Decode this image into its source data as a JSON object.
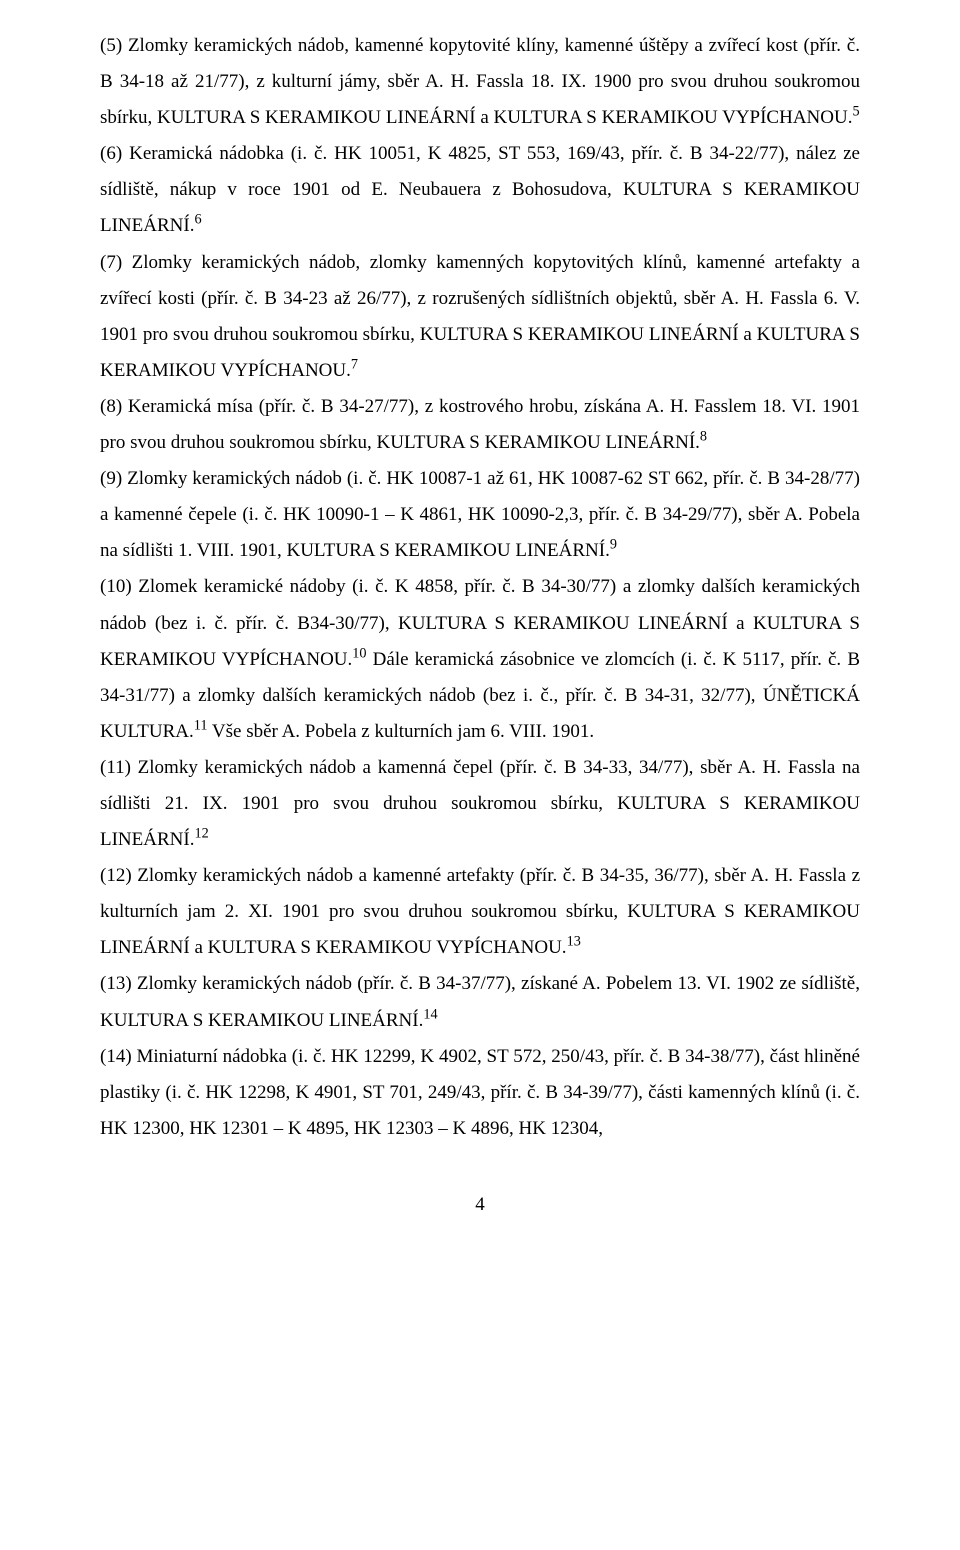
{
  "paragraphs": [
    {
      "runs": [
        {
          "t": "(5) Zlomky keramických nádob, kamenné kopytovité klíny, kamenné úštěpy a zvířecí kost (přír. č. B 34-18 až 21/77), z kulturní jámy, sběr A. H. Fassla 18. IX. 1900 pro svou druhou soukromou sbírku, KULTURA S KERAMIKOU LINEÁRNÍ a KULTURA S KERAMIKOU VYPÍCHANOU."
        },
        {
          "t": "5",
          "sup": true
        }
      ]
    },
    {
      "runs": [
        {
          "t": "(6) Keramická nádobka (i. č. HK 10051, K 4825, ST 553, 169/43, přír. č. B 34-22/77), nález ze sídliště, nákup v roce 1901 od E. Neubauera z Bohosudova, KULTURA S KERAMIKOU LINEÁRNÍ."
        },
        {
          "t": "6",
          "sup": true
        }
      ]
    },
    {
      "runs": [
        {
          "t": "(7) Zlomky keramických nádob, zlomky kamenných kopytovitých klínů, kamenné artefakty a zvířecí kosti (přír. č. B 34-23 až 26/77), z rozrušených sídlištních objektů, sběr A. H. Fassla 6. V. 1901 pro svou druhou soukromou sbírku, KULTURA S KERAMIKOU LINEÁRNÍ a KULTURA S KERAMIKOU VYPÍCHANOU."
        },
        {
          "t": "7",
          "sup": true
        }
      ]
    },
    {
      "runs": [
        {
          "t": "(8) Keramická mísa (přír. č. B 34-27/77), z kostrového hrobu, získána A. H. Fasslem 18. VI. 1901 pro svou druhou soukromou sbírku, KULTURA S KERAMIKOU LINEÁRNÍ."
        },
        {
          "t": "8",
          "sup": true
        }
      ]
    },
    {
      "runs": [
        {
          "t": "(9) Zlomky keramických nádob (i. č. HK 10087-1 až 61, HK 10087-62 ST 662, přír. č. B 34-28/77) a kamenné čepele (i. č. HK 10090-1 – K 4861, HK 10090-2,3, přír. č. B 34-29/77), sběr A. Pobela na sídlišti 1. VIII. 1901, KULTURA S KERAMIKOU LINEÁRNÍ."
        },
        {
          "t": "9",
          "sup": true
        }
      ]
    },
    {
      "runs": [
        {
          "t": "(10) Zlomek keramické nádoby (i. č. K 4858, přír. č. B 34-30/77) a zlomky dalších keramických nádob (bez i. č. přír. č. B34-30/77), KULTURA S KERAMIKOU LINEÁRNÍ a  KULTURA S KERAMIKOU VYPÍCHANOU."
        },
        {
          "t": "10",
          "sup": true
        },
        {
          "t": "  Dále keramická zásobnice ve zlomcích (i. č. K 5117, přír. č. B 34-31/77) a zlomky dalších keramických nádob (bez i. č., přír. č. B 34-31, 32/77), ÚNĚTICKÁ KULTURA."
        },
        {
          "t": "11",
          "sup": true
        },
        {
          "t": " Vše sběr A. Pobela z kulturních jam 6. VIII. 1901."
        }
      ]
    },
    {
      "runs": [
        {
          "t": "(11) Zlomky keramických nádob a kamenná čepel (přír. č. B 34-33, 34/77), sběr A. H. Fassla na sídlišti 21. IX. 1901 pro svou druhou soukromou sbírku, KULTURA S KERAMIKOU LINEÁRNÍ."
        },
        {
          "t": "12",
          "sup": true
        }
      ]
    },
    {
      "runs": [
        {
          "t": "(12) Zlomky keramických nádob a kamenné artefakty (přír. č. B 34-35, 36/77), sběr A. H. Fassla z kulturních jam 2. XI. 1901 pro svou druhou soukromou sbírku, KULTURA S KERAMIKOU LINEÁRNÍ a KULTURA S KERAMIKOU VYPÍCHANOU."
        },
        {
          "t": "13",
          "sup": true
        }
      ]
    },
    {
      "runs": [
        {
          "t": "(13) Zlomky keramických nádob (přír. č. B 34-37/77), získané A. Pobelem 13. VI. 1902 ze sídliště, KULTURA S KERAMIKOU LINEÁRNÍ."
        },
        {
          "t": "14",
          "sup": true
        }
      ]
    },
    {
      "runs": [
        {
          "t": "(14) Miniaturní nádobka (i. č. HK 12299, K 4902, ST 572, 250/43, přír. č. B 34-38/77), část hliněné plastiky (i. č. HK 12298, K 4901, ST 701, 249/43, přír. č. B 34-39/77), části kamenných klínů (i. č. HK 12300, HK 12301 – K 4895, HK 12303 – K 4896, HK 12304,"
        }
      ]
    }
  ],
  "page_number": "4"
}
